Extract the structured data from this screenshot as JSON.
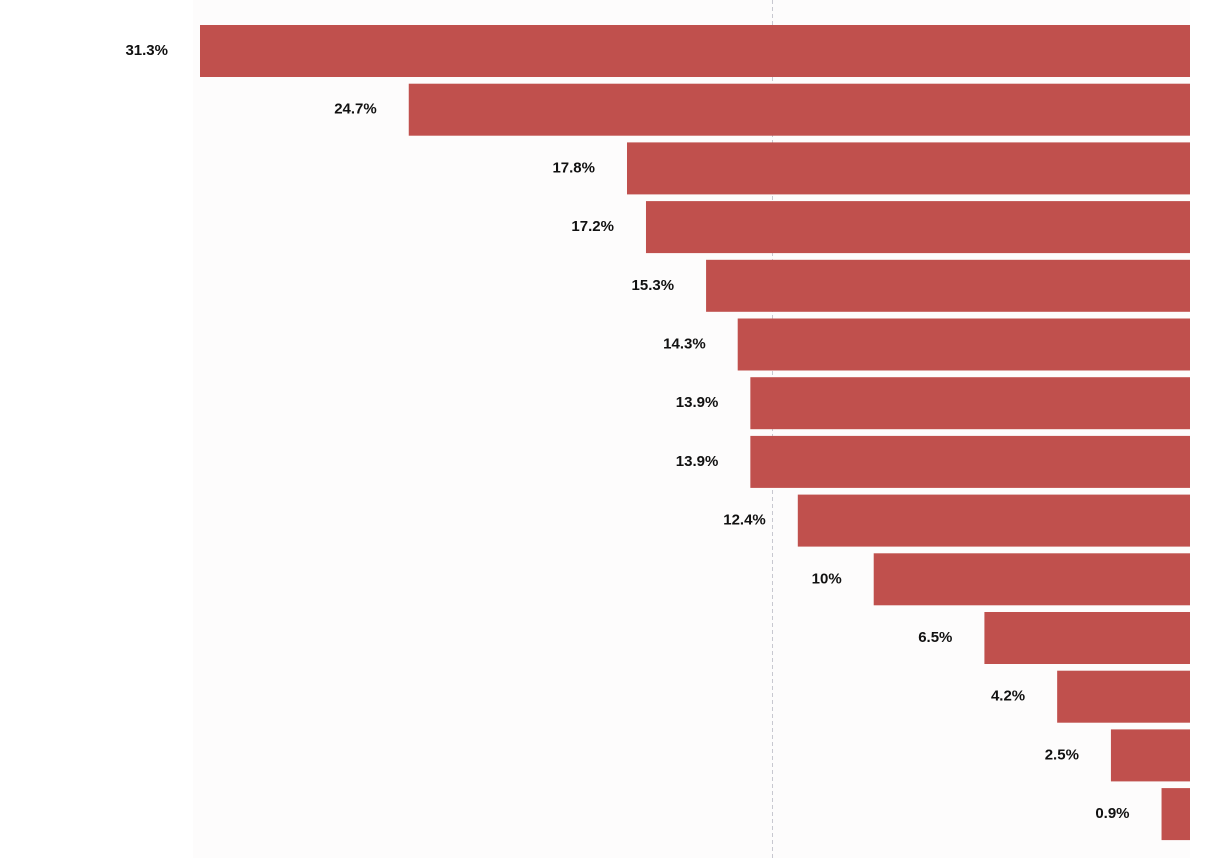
{
  "chart_data": {
    "type": "hbar-left",
    "values": [
      31.3,
      24.7,
      17.8,
      17.2,
      15.3,
      14.3,
      13.9,
      13.9,
      12.4,
      10,
      6.5,
      4.2,
      2.5,
      0.9
    ],
    "value_labels": [
      "31.3%",
      "24.7%",
      "17.8%",
      "17.2%",
      "15.3%",
      "14.3%",
      "13.9%",
      "13.9%",
      "12.4%",
      "10%",
      "6.5%",
      "4.2%",
      "2.5%",
      "0.9%"
    ],
    "color": "#c0504d",
    "xlim": [
      0,
      31.3
    ],
    "reference_line": 13.2
  }
}
